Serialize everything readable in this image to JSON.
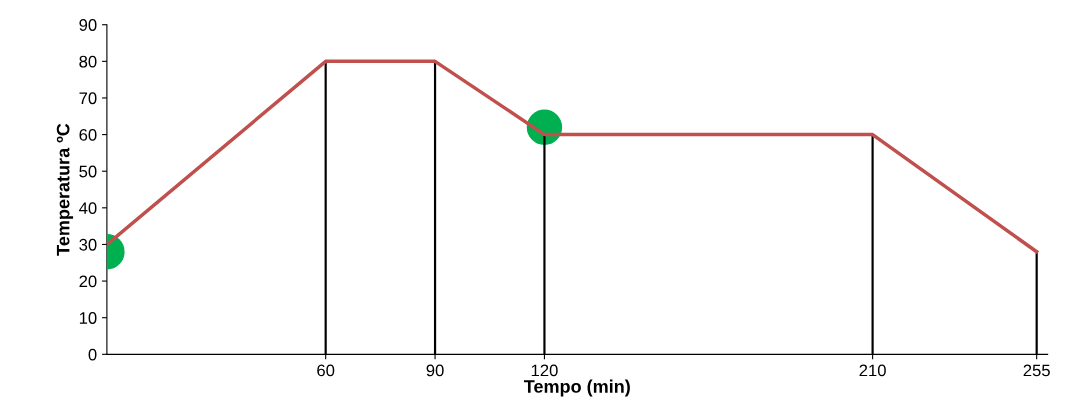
{
  "chart_data": {
    "type": "line",
    "xlabel": "Tempo (min)",
    "ylabel": "Temperatura ºC",
    "xlim": [
      0,
      258
    ],
    "xticks": [
      60,
      90,
      120,
      210,
      255
    ],
    "ylim": [
      0,
      90
    ],
    "yticks": [
      0,
      10,
      20,
      30,
      40,
      50,
      60,
      70,
      80,
      90
    ],
    "grid": false,
    "marker": "none",
    "line_style": "solid",
    "series": [
      {
        "type": "bar",
        "color": "#000000",
        "x": [
          60,
          90,
          120,
          210,
          255
        ],
        "values": [
          80,
          80,
          60,
          60,
          28
        ]
      },
      {
        "color": "#c0504d",
        "x": [
          0,
          60,
          90,
          120,
          210,
          255
        ],
        "values": [
          30,
          80,
          80,
          60,
          60,
          28
        ]
      },
      {
        "type": "scatter",
        "color": "#00b050",
        "marker": "circle",
        "x": [
          0,
          120
        ],
        "values": [
          28,
          62
        ]
      }
    ]
  }
}
